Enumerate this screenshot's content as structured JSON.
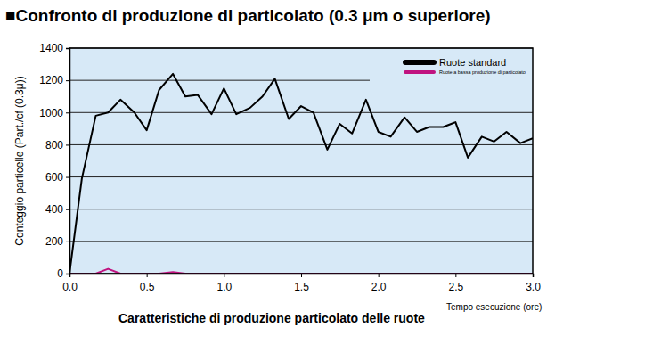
{
  "chart_data": {
    "type": "line",
    "title": "■Confronto di produzione di particolato (0.3 μm o superiore)",
    "y_label": "Conteggio particelle (Part./cf (0.3μ))",
    "x_label": "Tempo esecuzione (ore)",
    "annotations": [
      "Caratteristiche di produzione particolato delle ruote"
    ],
    "x": [
      0,
      0.08,
      0.17,
      0.25,
      0.33,
      0.42,
      0.5,
      0.58,
      0.67,
      0.75,
      0.83,
      0.92,
      1.0,
      1.08,
      1.17,
      1.25,
      1.33,
      1.42,
      1.5,
      1.58,
      1.67,
      1.75,
      1.83,
      1.92,
      2.0,
      2.08,
      2.17,
      2.25,
      2.33,
      2.42,
      2.5,
      2.58,
      2.67,
      2.75,
      2.83,
      2.92,
      3.0
    ],
    "series": [
      {
        "name": "Ruote standard",
        "color": "#000000",
        "values": [
          0,
          590,
          980,
          1000,
          1080,
          1000,
          890,
          1140,
          1240,
          1100,
          1110,
          990,
          1150,
          990,
          1030,
          1100,
          1210,
          960,
          1040,
          1000,
          770,
          930,
          870,
          1080,
          880,
          850,
          970,
          880,
          910,
          910,
          940,
          720,
          850,
          820,
          880,
          810,
          840
        ]
      },
      {
        "name": "Ruote a bassa produzione di particolato",
        "color": "#c0137f",
        "values": [
          0,
          0,
          0,
          30,
          0,
          0,
          0,
          0,
          10,
          0,
          0,
          0,
          0,
          0,
          0,
          0,
          0,
          0,
          0,
          0,
          0,
          0,
          0,
          0,
          0,
          0,
          0,
          0,
          0,
          0,
          0,
          0,
          0,
          0,
          0,
          0,
          0
        ]
      }
    ],
    "xlim": [
      0,
      3
    ],
    "xticks": [
      {
        "value": 0,
        "label": "0.0"
      },
      0.5,
      {
        "value": 1,
        "label": "1.0"
      },
      1.5,
      {
        "value": 2,
        "label": "2.0"
      },
      2.5,
      {
        "value": 3,
        "label": "3.0"
      }
    ],
    "ylim": [
      0,
      1400
    ],
    "yticks": [
      0,
      200,
      400,
      600,
      800,
      1000,
      1200,
      1400
    ],
    "grid": true,
    "legend": "top-right"
  }
}
